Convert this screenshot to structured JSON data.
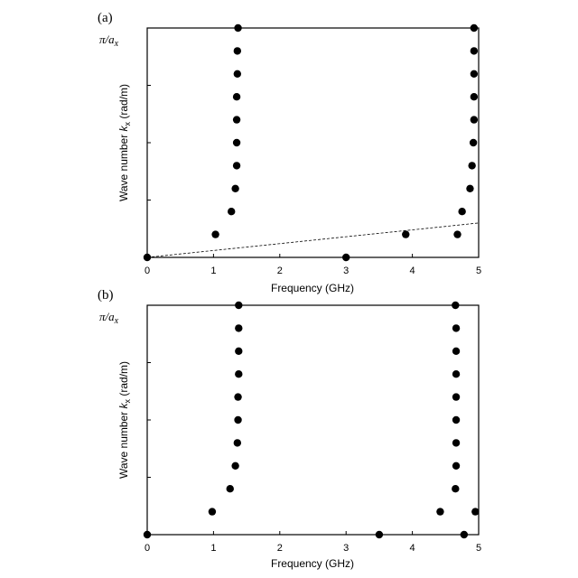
{
  "chart_data": [
    {
      "type": "scatter",
      "panel_label": "(a)",
      "title": "",
      "xlabel": "Frequency (GHz)",
      "ylabel": "Wave number k_x (rad/m)",
      "ylabel_main": "Wave number ",
      "ylabel_var": "k",
      "ylabel_sub": "x",
      "ylabel_unit": " (rad/m)",
      "xlim": [
        0,
        5
      ],
      "ylim": [
        0,
        1
      ],
      "xticks": [
        "0",
        "1",
        "2",
        "3",
        "4",
        "5"
      ],
      "ytick_top_label": "π/a",
      "ytick_top_sub": "x",
      "y_units": "fraction of π/a_x",
      "grid": false,
      "series": [
        {
          "marker": "filled-circle",
          "points": [
            [
              0,
              0
            ],
            [
              1.03,
              0.1
            ],
            [
              1.27,
              0.2
            ],
            [
              1.33,
              0.3
            ],
            [
              1.35,
              0.4
            ],
            [
              1.35,
              0.5
            ],
            [
              1.35,
              0.6
            ],
            [
              1.35,
              0.7
            ],
            [
              1.36,
              0.8
            ],
            [
              1.36,
              0.9
            ],
            [
              1.37,
              1.0
            ],
            [
              3.0,
              0
            ],
            [
              3.9,
              0.1
            ],
            [
              4.68,
              0.1
            ],
            [
              4.75,
              0.2
            ],
            [
              4.87,
              0.3
            ],
            [
              4.9,
              0.4
            ],
            [
              4.92,
              0.5
            ],
            [
              4.93,
              0.6
            ],
            [
              4.93,
              0.7
            ],
            [
              4.93,
              0.8
            ],
            [
              4.93,
              0.9
            ],
            [
              4.93,
              1.0
            ]
          ]
        }
      ],
      "light_line": {
        "style": "dashed",
        "from": [
          0,
          0
        ],
        "to": [
          5,
          0.15
        ]
      }
    },
    {
      "type": "scatter",
      "panel_label": "(b)",
      "title": "",
      "xlabel": "Frequency (GHz)",
      "ylabel": "Wave number k_x (rad/m)",
      "ylabel_main": "Wave number ",
      "ylabel_var": "k",
      "ylabel_sub": "x",
      "ylabel_unit": " (rad/m)",
      "xlim": [
        0,
        5
      ],
      "ylim": [
        0,
        1
      ],
      "xticks": [
        "0",
        "1",
        "2",
        "3",
        "4",
        "5"
      ],
      "ytick_top_label": "π/a",
      "ytick_top_sub": "x",
      "y_units": "fraction of π/a_x",
      "grid": false,
      "series": [
        {
          "marker": "filled-circle",
          "points": [
            [
              0,
              0
            ],
            [
              0.98,
              0.1
            ],
            [
              1.25,
              0.2
            ],
            [
              1.33,
              0.3
            ],
            [
              1.36,
              0.4
            ],
            [
              1.37,
              0.5
            ],
            [
              1.37,
              0.6
            ],
            [
              1.38,
              0.7
            ],
            [
              1.38,
              0.8
            ],
            [
              1.38,
              0.9
            ],
            [
              1.38,
              1.0
            ],
            [
              3.5,
              0
            ],
            [
              4.42,
              0.1
            ],
            [
              4.65,
              0.2
            ],
            [
              4.66,
              0.3
            ],
            [
              4.66,
              0.4
            ],
            [
              4.66,
              0.5
            ],
            [
              4.66,
              0.6
            ],
            [
              4.66,
              0.7
            ],
            [
              4.66,
              0.8
            ],
            [
              4.66,
              0.9
            ],
            [
              4.65,
              1.0
            ],
            [
              4.78,
              0
            ],
            [
              4.95,
              0.1
            ]
          ]
        }
      ]
    }
  ]
}
